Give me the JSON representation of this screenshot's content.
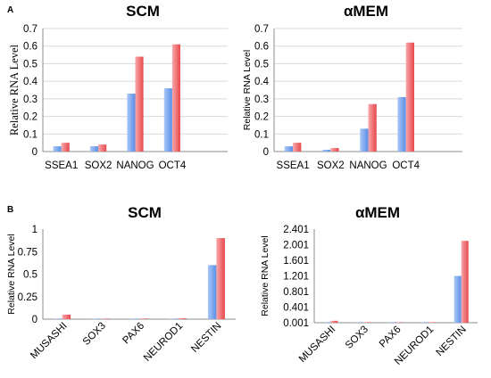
{
  "panels": [
    {
      "letter": "A"
    },
    {
      "letter": "B"
    }
  ],
  "colors": {
    "series_1": "#5b8ee6",
    "series_1_light": "#a9c7f7",
    "series_2": "#e8484d",
    "series_2_light": "#f8a8aa",
    "gridline": "#d9d9d9"
  },
  "chart_data": [
    {
      "type": "bar",
      "title": "SCM",
      "ylabel": "Relative RNA Level",
      "categories": [
        "SSEA1",
        "SOX2",
        "NANOG",
        "OCT4"
      ],
      "series": [
        {
          "values": [
            0.03,
            0.03,
            0.33,
            0.36
          ]
        },
        {
          "values": [
            0.05,
            0.04,
            0.54,
            0.61
          ]
        }
      ],
      "ylim": [
        0,
        0.7
      ],
      "yticks": [
        "0",
        "0.1",
        "0.2",
        "0.3",
        "0.4",
        "0.5",
        "0.6",
        "0.7"
      ],
      "grid": true,
      "extra_empty_slots": 1
    },
    {
      "type": "bar",
      "title": "αMEM",
      "ylabel": "Relative RNA Level",
      "categories": [
        "SSEA1",
        "SOX2",
        "NANOG",
        "OCT4"
      ],
      "series": [
        {
          "values": [
            0.03,
            0.01,
            0.13,
            0.31
          ]
        },
        {
          "values": [
            0.05,
            0.02,
            0.27,
            0.62
          ]
        }
      ],
      "ylim": [
        0,
        0.7
      ],
      "yticks": [
        "0",
        "0.1",
        "0.2",
        "0.3",
        "0.4",
        "0.5",
        "0.6",
        "0.7"
      ],
      "grid": true,
      "extra_empty_slots": 1
    },
    {
      "type": "bar",
      "title": "SCM",
      "ylabel": "Relative RNA Level",
      "categories": [
        "MUSASHI",
        "SOX3",
        "PAX6",
        "NEUROD1",
        "NESTIN"
      ],
      "series": [
        {
          "values": [
            0.005,
            0.001,
            0.003,
            0.005,
            0.6
          ]
        },
        {
          "values": [
            0.05,
            0.002,
            0.007,
            0.01,
            0.9
          ]
        }
      ],
      "ylim": [
        0,
        1
      ],
      "yticks": [
        "0",
        "0.25",
        "0.5",
        "0.75",
        "1"
      ],
      "grid": false,
      "extra_empty_slots": 0
    },
    {
      "type": "bar",
      "title": "αMEM",
      "ylabel": "Relative RNA Level",
      "categories": [
        "MUSASHI",
        "SOX3",
        "PAX6",
        "NEUROD1",
        "NESTIN"
      ],
      "series": [
        {
          "values": [
            0.005,
            0.002,
            0.004,
            0.006,
            1.2
          ]
        },
        {
          "values": [
            0.05,
            0.003,
            0.01,
            0.012,
            2.1
          ]
        }
      ],
      "ylim": [
        0.001,
        2.401
      ],
      "yticks": [
        "0.001",
        "0.401",
        "0.801",
        "1.201",
        "1.601",
        "2.001",
        "2.401"
      ],
      "grid": false,
      "extra_empty_slots": 0
    }
  ]
}
